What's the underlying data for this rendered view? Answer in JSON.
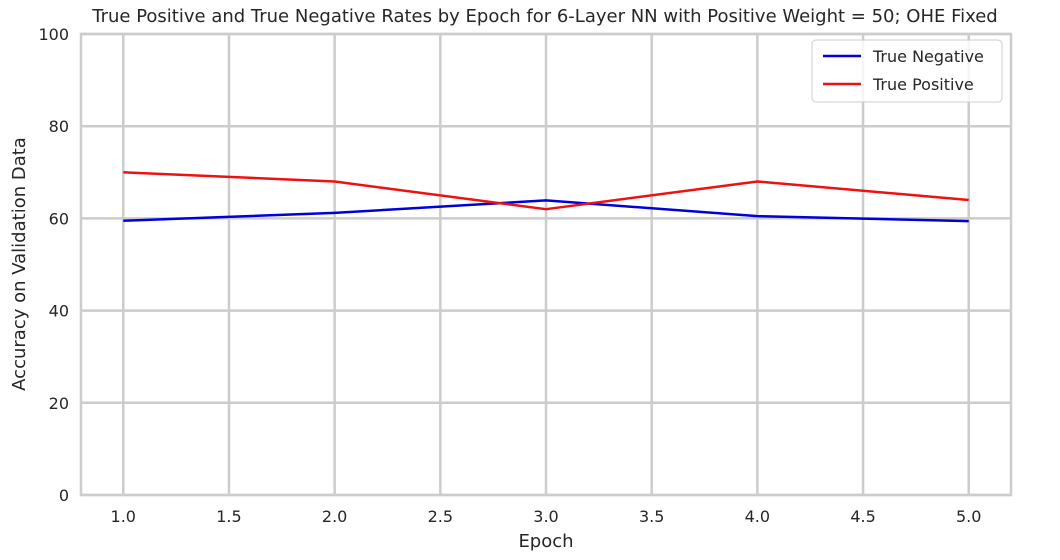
{
  "chart_data": {
    "type": "line",
    "title": "True Positive and True Negative Rates by Epoch for 6-Layer NN with Positive Weight = 50; OHE Fixed",
    "xlabel": "Epoch",
    "ylabel": "Accuracy on Validation Data",
    "x": [
      1.0,
      2.0,
      3.0,
      4.0,
      5.0
    ],
    "xlim": [
      0.8,
      5.2
    ],
    "ylim": [
      0,
      100
    ],
    "xticks": [
      "1.0",
      "1.5",
      "2.0",
      "2.5",
      "3.0",
      "3.5",
      "4.0",
      "4.5",
      "5.0"
    ],
    "yticks": [
      "0",
      "20",
      "40",
      "60",
      "80",
      "100"
    ],
    "grid": true,
    "legend_position": "top-right",
    "series": [
      {
        "name": "True Negative",
        "color": "#0000dd",
        "values": [
          59.5,
          61.2,
          63.9,
          60.5,
          59.4
        ]
      },
      {
        "name": "True Positive",
        "color": "#ee1111",
        "values": [
          70.0,
          68.0,
          62.0,
          68.0,
          64.0
        ]
      }
    ]
  }
}
